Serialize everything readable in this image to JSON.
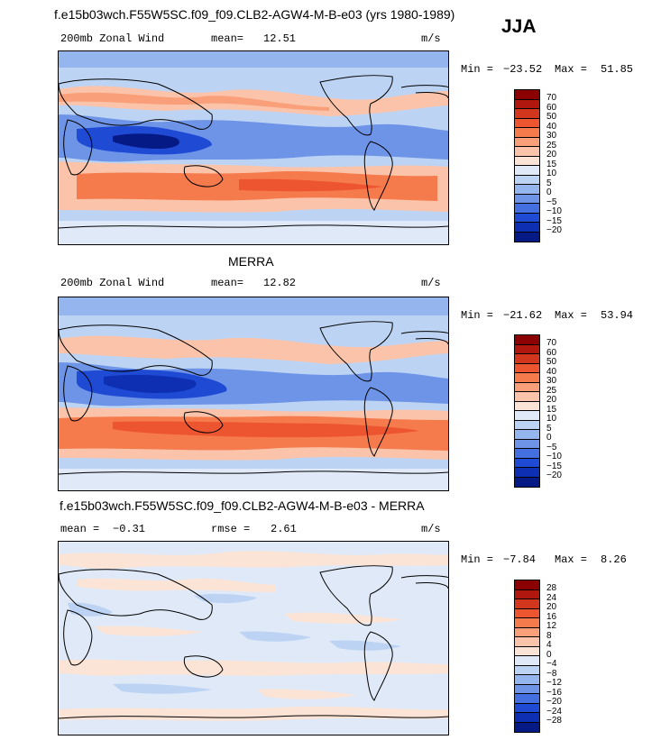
{
  "season": "JJA",
  "panels": [
    {
      "title": "f.e15b03wch.F55W5SC.f09_f09.CLB2-AGW4-M-B-e03 (yrs 1980-1989)",
      "left_label": "200mb Zonal Wind",
      "stat1_label": "mean=",
      "stat1_value": "12.51",
      "stat2_label": "",
      "stat2_value": "",
      "units": "m/s",
      "min_label": "Min =",
      "min_value": "−23.52",
      "max_label": "Max =",
      "max_value": "51.85",
      "colorbar_labels": [
        "70",
        "60",
        "50",
        "40",
        "30",
        "25",
        "20",
        "15",
        "10",
        "5",
        "0",
        "−5",
        "−10",
        "−15",
        "−20"
      ]
    },
    {
      "title": "MERRA",
      "left_label": "200mb Zonal Wind",
      "stat1_label": "mean=",
      "stat1_value": "12.82",
      "stat2_label": "",
      "stat2_value": "",
      "units": "m/s",
      "min_label": "Min =",
      "min_value": "−21.62",
      "max_label": "Max =",
      "max_value": "53.94",
      "colorbar_labels": [
        "70",
        "60",
        "50",
        "40",
        "30",
        "25",
        "20",
        "15",
        "10",
        "5",
        "0",
        "−5",
        "−10",
        "−15",
        "−20"
      ]
    },
    {
      "title": "f.e15b03wch.F55W5SC.f09_f09.CLB2-AGW4-M-B-e03 - MERRA",
      "left_label": "",
      "stat1_label": "mean =",
      "stat1_value": "−0.31",
      "stat2_label": "rmse =",
      "stat2_value": "2.61",
      "units": "m/s",
      "min_label": "Min =",
      "min_value": "−7.84",
      "max_label": "Max =",
      "max_value": "8.26",
      "colorbar_labels": [
        "28",
        "24",
        "20",
        "16",
        "12",
        "8",
        "4",
        "0",
        "−4",
        "−8",
        "−12",
        "−16",
        "−20",
        "−24",
        "−28"
      ]
    }
  ],
  "colors": {
    "colorbar_top_to_bottom": [
      "#8b0000",
      "#b0170e",
      "#d2361c",
      "#ed5430",
      "#f57a4c",
      "#f9a07b",
      "#fbc4aa",
      "#fbe4d6",
      "#dfe9f7",
      "#bcd3f3",
      "#95b5ee",
      "#6e94e8",
      "#436fe0",
      "#1f4ad4",
      "#0e2fb2",
      "#061a86"
    ],
    "land_outline": "#000000"
  }
}
